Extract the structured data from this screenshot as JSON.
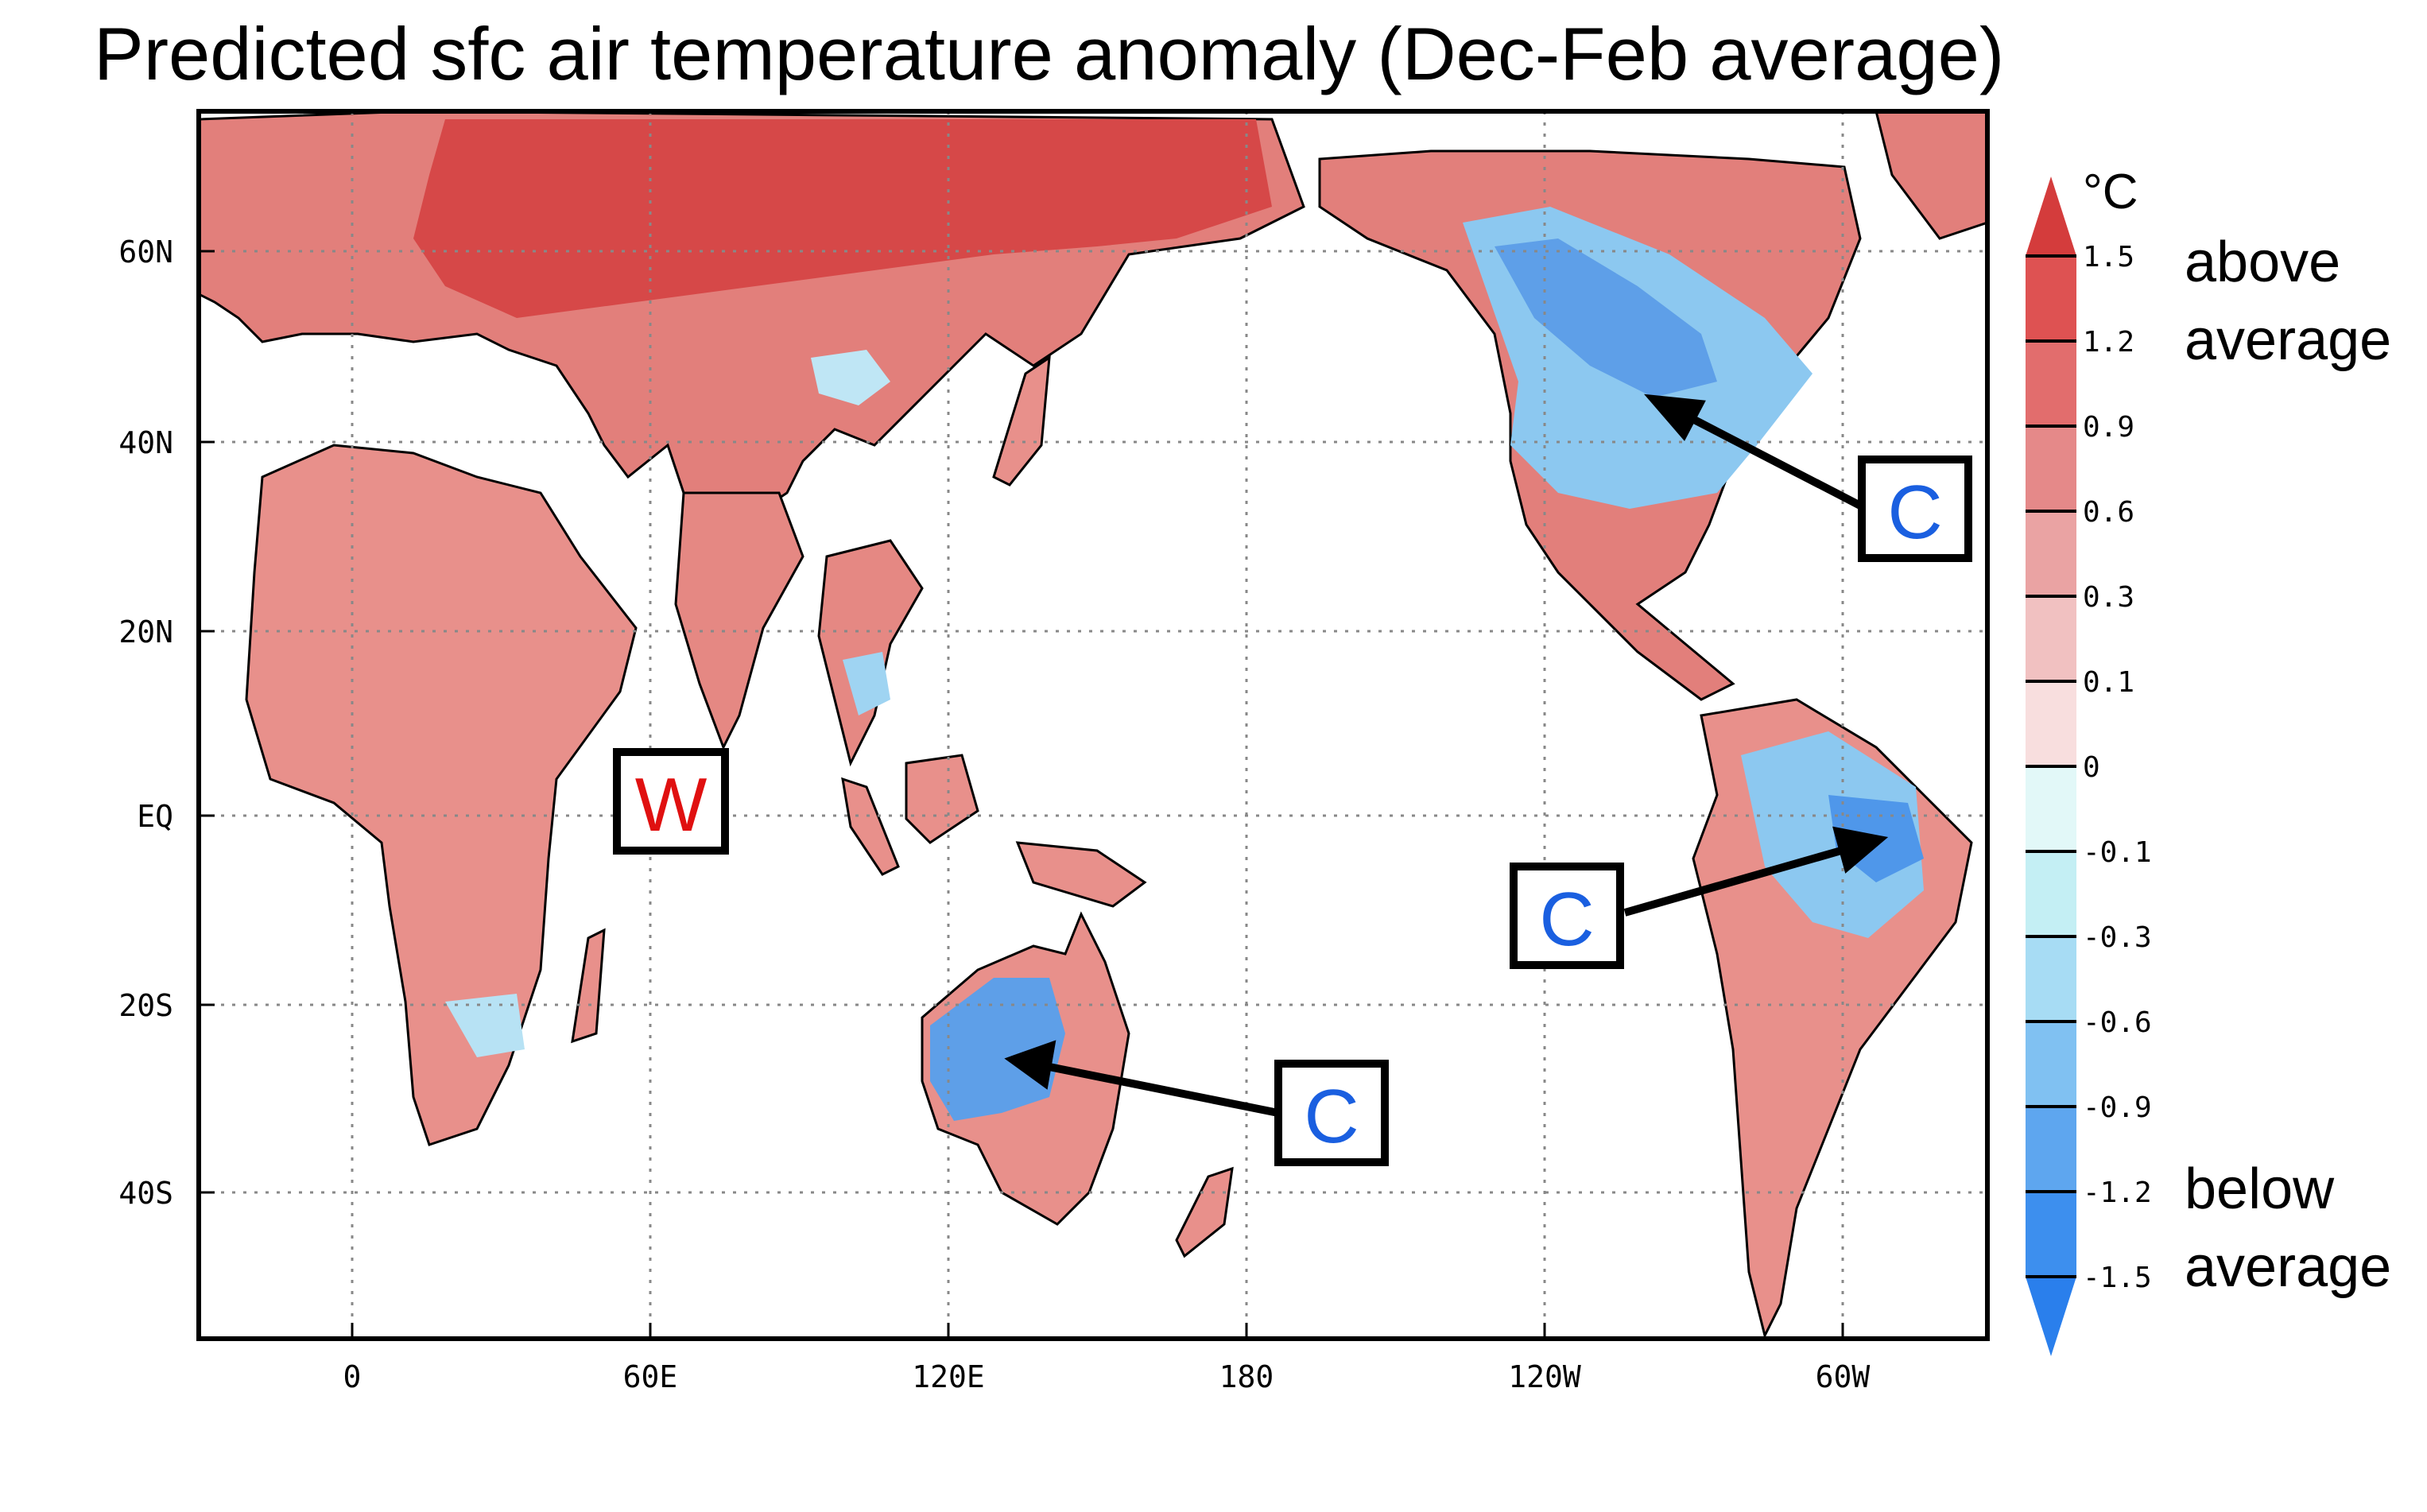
{
  "title": "Predicted sfc air temperature anomaly (Dec-Feb average)",
  "map": {
    "x_ticks": [
      "0",
      "60E",
      "120E",
      "180",
      "120W",
      "60W"
    ],
    "y_ticks": [
      "60N",
      "40N",
      "20N",
      "EQ",
      "20S",
      "40S"
    ],
    "grid": "dotted"
  },
  "colorbar": {
    "unit": "°C",
    "levels": [
      "1.5",
      "1.2",
      "0.9",
      "0.6",
      "0.3",
      "0.1",
      "0",
      "-0.1",
      "-0.3",
      "-0.6",
      "-0.9",
      "-1.2",
      "-1.5"
    ],
    "colors": [
      "#d43c3c",
      "#de5252",
      "#e26d6d",
      "#e58989",
      "#eaa3a3",
      "#f1c1c1",
      "#f8dede",
      "#e2f8f8",
      "#c4eff4",
      "#a7dcf4",
      "#80c1f2",
      "#5ea6ef",
      "#3d8fee",
      "#2a7fec"
    ],
    "above_label": [
      "above",
      "average"
    ],
    "below_label": [
      "below",
      "average"
    ]
  },
  "annotations": [
    {
      "text": "W",
      "color": "#e01010"
    },
    {
      "text": "C",
      "color": "#1a5fe0"
    },
    {
      "text": "C",
      "color": "#1a5fe0"
    },
    {
      "text": "C",
      "color": "#1a5fe0"
    }
  ],
  "colors": {
    "warm": "#e6827e",
    "warm_strong": "#d64848",
    "cool": "#8cc8f0",
    "cool_strong": "#4f97ea"
  }
}
